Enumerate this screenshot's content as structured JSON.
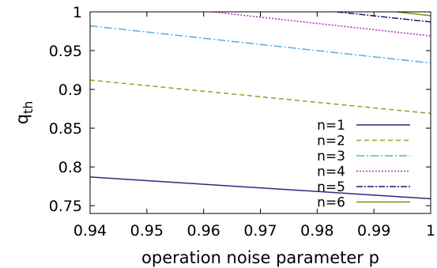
{
  "chart_data": {
    "type": "line",
    "xlabel": "operation noise parameter p",
    "ylabel": "q_th",
    "ylabel_main": "q",
    "ylabel_sub": "th",
    "xlim": [
      0.94,
      1.0
    ],
    "ylim": [
      0.74,
      1.0
    ],
    "x_ticks": [
      0.94,
      0.95,
      0.96,
      0.97,
      0.98,
      0.99,
      1.0
    ],
    "x_tick_labels": [
      "0.94",
      "0.95",
      "0.96",
      "0.97",
      "0.98",
      "0.99",
      "1"
    ],
    "y_ticks": [
      0.75,
      0.8,
      0.85,
      0.9,
      0.95,
      1.0
    ],
    "y_tick_labels": [
      "0.75",
      "0.8",
      "0.85",
      "0.9",
      "0.95",
      "1"
    ],
    "grid": false,
    "legend_position": "bottom-right",
    "series": [
      {
        "name": "n=1",
        "color": "#2a2a84",
        "dash": "",
        "x": [
          0.94,
          1.0
        ],
        "y": [
          0.787,
          0.759
        ]
      },
      {
        "name": "n=2",
        "color": "#9a9a2a",
        "dash": "6,4",
        "x": [
          0.94,
          1.0
        ],
        "y": [
          0.912,
          0.869
        ]
      },
      {
        "name": "n=3",
        "color": "#5aaed8",
        "dash": "10,3,2,3",
        "x": [
          0.94,
          1.0
        ],
        "y": [
          0.982,
          0.934
        ]
      },
      {
        "name": "n=4",
        "color": "#b030b0",
        "dash": "2,2",
        "x": [
          0.9615,
          1.0
        ],
        "y": [
          1.0,
          0.969
        ]
      },
      {
        "name": "n=5",
        "color": "#1a1a70",
        "dash": "8,2,2,2",
        "x": [
          0.9835,
          1.0
        ],
        "y": [
          1.0,
          0.987
        ]
      },
      {
        "name": "n=6",
        "color": "#8a8a10",
        "dash": "",
        "x": [
          0.994,
          1.0
        ],
        "y": [
          1.0,
          0.995
        ]
      }
    ]
  }
}
